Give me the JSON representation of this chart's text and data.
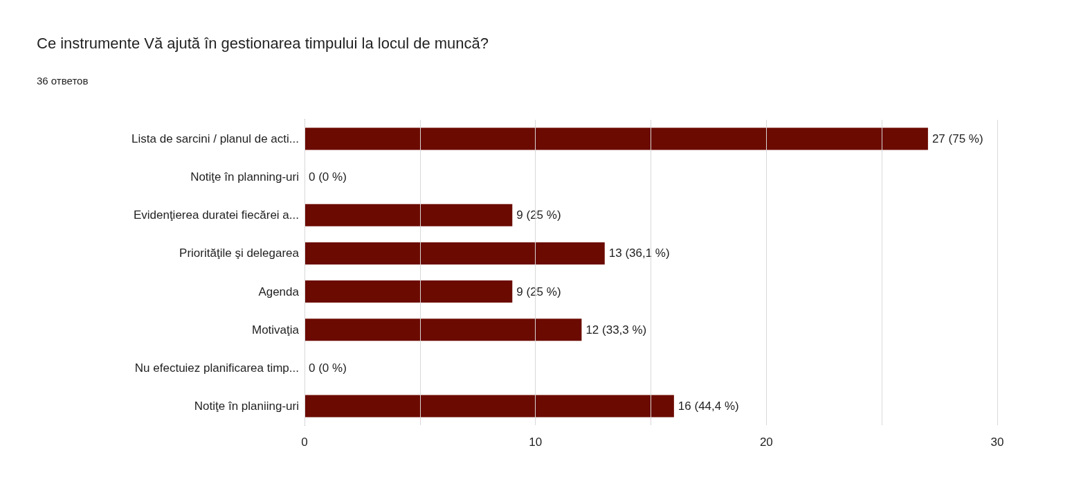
{
  "chart_data": {
    "type": "bar",
    "orientation": "horizontal",
    "title": "Ce instrumente Vă ajută în gestionarea timpului la locul de muncă?",
    "subtitle": "36 ответов",
    "categories": [
      "Lista de sarcini / planul de acti...",
      "Notiţe în planning-uri",
      "Evidenţierea duratei fiecărei a...",
      "Priorităţile şi delegarea",
      "Agenda",
      "Motivaţia",
      "Nu efectuiez planificarea timp...",
      "Notiţe în planiing-uri"
    ],
    "values": [
      27,
      0,
      9,
      13,
      9,
      12,
      0,
      16
    ],
    "value_labels": [
      "27 (75 %)",
      "0 (0 %)",
      "9 (25 %)",
      "13 (36,1 %)",
      "9 (25 %)",
      "12 (33,3 %)",
      "0 (0 %)",
      "16 (44,4 %)"
    ],
    "color": "#6b0a00",
    "xlim": [
      0,
      30
    ],
    "xticks": [
      0,
      {
        "value": 5,
        "label": null
      },
      10,
      {
        "value": 15,
        "label": null
      },
      20,
      {
        "value": 25,
        "label": null
      },
      30
    ],
    "grid": "x"
  }
}
